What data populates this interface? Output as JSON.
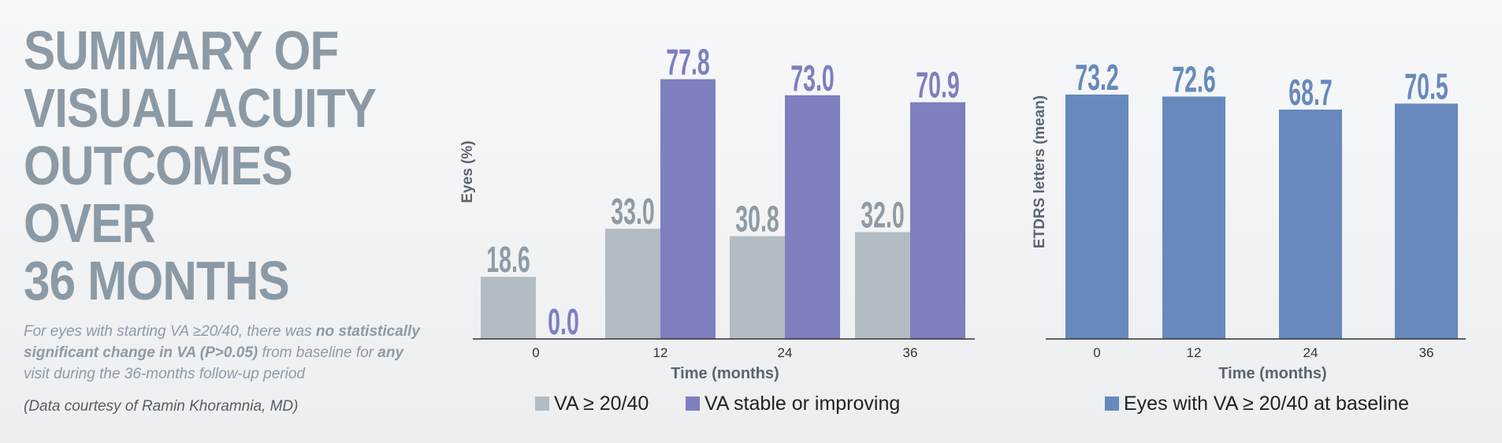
{
  "title_lines": [
    "SUMMARY OF",
    "VISUAL ACUITY",
    "OUTCOMES OVER",
    "36 MONTHS"
  ],
  "note": {
    "p1": "For eyes with starting VA ≥20/40, there was ",
    "b1": "no statistically significant change in VA (P>0.05)",
    "p2": " from baseline for ",
    "b2": "any",
    "p3": " visit during the 36-months follow-up period"
  },
  "credit": "(Data courtesy of Ramin Khoramnia, MD)",
  "colors": {
    "gray_bar": "#b2bcc3",
    "purple_bar": "#7d7fbf",
    "blue_bar": "#6789bd",
    "gray_label": "#8f9ba4",
    "axis_text": "#5b6570"
  },
  "chart_data": [
    {
      "type": "bar",
      "title": "",
      "xlabel": "Time (months)",
      "ylabel": "Eyes (%)",
      "categories": [
        "0",
        "12",
        "24",
        "36"
      ],
      "ylim": [
        0,
        85
      ],
      "series": [
        {
          "name": "VA ≥ 20/40",
          "values": [
            18.6,
            33.0,
            30.8,
            32.0
          ],
          "labels": [
            "18.6",
            "33.0",
            "30.8",
            "32.0"
          ]
        },
        {
          "name": "VA stable or improving",
          "values": [
            0.0,
            77.8,
            73.0,
            70.9
          ],
          "labels": [
            "0.0",
            "77.8",
            "73.0",
            "70.9"
          ]
        }
      ],
      "legend": "bottom"
    },
    {
      "type": "bar",
      "title": "",
      "xlabel": "Time (months)",
      "ylabel": "ETDRS letters (mean)",
      "categories": [
        "0",
        "12",
        "24",
        "36"
      ],
      "ylim": [
        0,
        85
      ],
      "series": [
        {
          "name": "Eyes with VA ≥ 20/40 at baseline",
          "values": [
            73.2,
            72.6,
            68.7,
            70.5
          ],
          "labels": [
            "73.2",
            "72.6",
            "68.7",
            "70.5"
          ]
        }
      ],
      "legend": "bottom"
    }
  ]
}
